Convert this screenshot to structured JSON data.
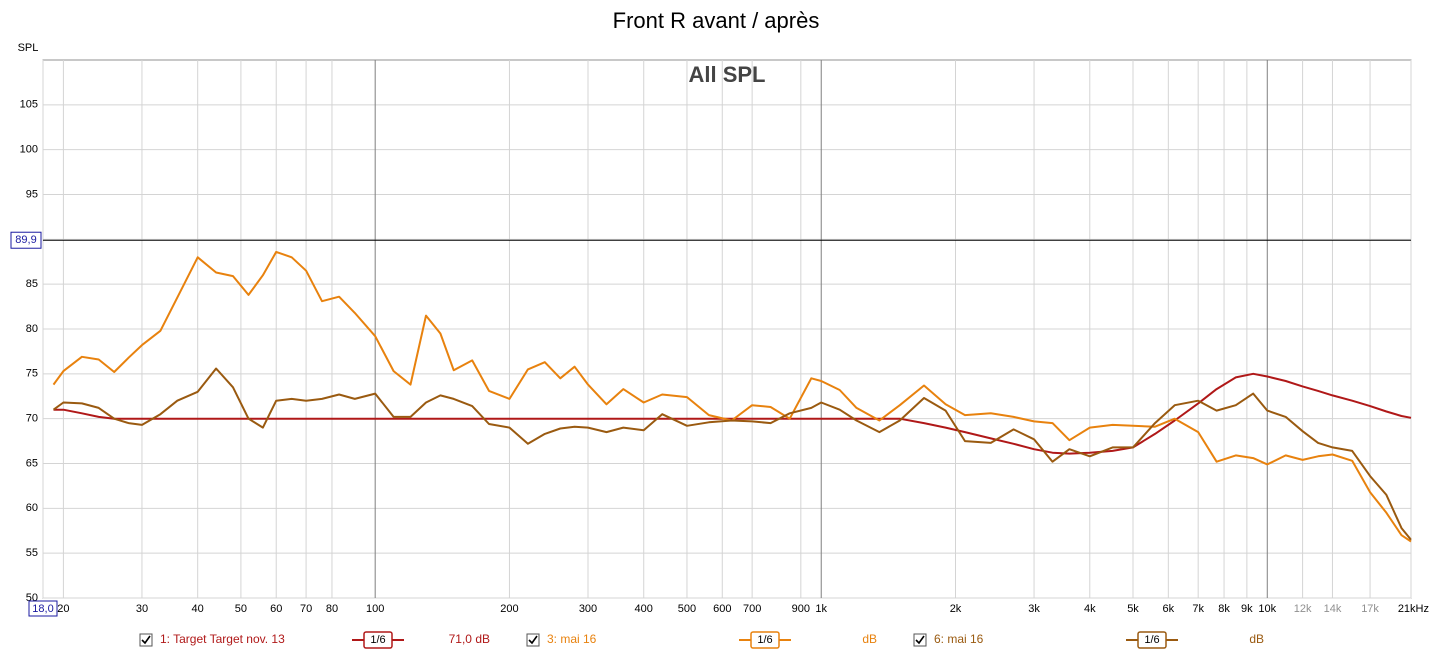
{
  "chart_data": {
    "type": "line",
    "title": "Front R avant / après",
    "annotation": "All SPL",
    "y_label": "SPL",
    "log_x": true,
    "grid": true,
    "xlim": [
      18,
      21000
    ],
    "ylim": [
      50,
      110
    ],
    "yticks": [
      50,
      55,
      60,
      65,
      70,
      75,
      80,
      85,
      90,
      95,
      100,
      105
    ],
    "xticks": [
      {
        "value": 18,
        "label": "18,0"
      },
      20,
      30,
      40,
      50,
      60,
      70,
      80,
      100,
      200,
      300,
      400,
      500,
      600,
      700,
      900,
      {
        "value": 1000,
        "label": "1k"
      },
      {
        "value": 2000,
        "label": "2k"
      },
      {
        "value": 3000,
        "label": "3k"
      },
      {
        "value": 4000,
        "label": "4k"
      },
      {
        "value": 5000,
        "label": "5k"
      },
      {
        "value": 6000,
        "label": "6k"
      },
      {
        "value": 7000,
        "label": "7k"
      },
      {
        "value": 8000,
        "label": "8k"
      },
      {
        "value": 9000,
        "label": "9k"
      },
      {
        "value": 10000,
        "label": "10k"
      },
      {
        "value": 12000,
        "label": "12k"
      },
      {
        "value": 14000,
        "label": "14k"
      },
      {
        "value": 17000,
        "label": "17k"
      },
      {
        "value": 21000,
        "label": "21kHz"
      }
    ],
    "cursor": {
      "value": 89.9,
      "label": "89,9"
    },
    "x": [
      19,
      20,
      22,
      24,
      26,
      28,
      30,
      33,
      36,
      40,
      44,
      48,
      52,
      56,
      60,
      65,
      70,
      76,
      83,
      90,
      100,
      110,
      120,
      130,
      140,
      150,
      165,
      180,
      200,
      220,
      240,
      260,
      280,
      300,
      330,
      360,
      400,
      440,
      500,
      560,
      630,
      700,
      770,
      850,
      950,
      1000,
      1100,
      1200,
      1350,
      1500,
      1700,
      1900,
      2100,
      2400,
      2700,
      3000,
      3300,
      3600,
      4000,
      4500,
      5000,
      5600,
      6200,
      7000,
      7700,
      8500,
      9300,
      10000,
      11000,
      12000,
      13000,
      14000,
      15500,
      17000,
      18500,
      20000,
      21000
    ],
    "series": [
      {
        "name": "1: Target Target nov. 13",
        "color": "#b01818",
        "smoothing": "1/6",
        "level": "71,0 dB",
        "values": [
          71,
          71,
          70.6,
          70.2,
          70,
          70,
          70,
          70,
          70,
          70,
          70,
          70,
          70,
          70,
          70,
          70,
          70,
          70,
          70,
          70,
          70,
          70,
          70,
          70,
          70,
          70,
          70,
          70,
          70,
          70,
          70,
          70,
          70,
          70,
          70,
          70,
          70,
          70,
          70,
          70,
          70,
          70,
          70,
          70,
          70,
          70,
          70,
          70,
          70,
          70,
          69.5,
          69,
          68.5,
          67.8,
          67.2,
          66.6,
          66.2,
          66.1,
          66.2,
          66.4,
          66.8,
          68.3,
          69.8,
          71.7,
          73.3,
          74.6,
          75,
          74.7,
          74.2,
          73.6,
          73.1,
          72.6,
          72,
          71.4,
          70.8,
          70.3,
          70.1
        ]
      },
      {
        "name": "3: mai 16",
        "color": "#e8820e",
        "smoothing": "1/6",
        "level": "dB",
        "values": [
          73.8,
          75.3,
          76.9,
          76.6,
          75.2,
          76.8,
          78.2,
          79.8,
          83.5,
          88,
          86.3,
          85.9,
          83.8,
          86,
          88.6,
          88,
          86.5,
          83.1,
          83.6,
          81.8,
          79.2,
          75.3,
          73.8,
          81.5,
          79.5,
          75.4,
          76.5,
          73.1,
          72.2,
          75.5,
          76.3,
          74.5,
          75.8,
          73.8,
          71.6,
          73.3,
          71.8,
          72.7,
          72.4,
          70.4,
          69.8,
          71.5,
          71.3,
          70,
          74.5,
          74.2,
          73.2,
          71.2,
          69.8,
          71.5,
          73.7,
          71.6,
          70.4,
          70.6,
          70.2,
          69.7,
          69.5,
          67.6,
          69,
          69.3,
          69.2,
          69.1,
          70,
          68.5,
          65.2,
          65.9,
          65.6,
          64.9,
          65.9,
          65.4,
          65.8,
          66,
          65.3,
          61.8,
          59.5,
          57,
          56.3
        ]
      },
      {
        "name": "6: mai 16",
        "color": "#9a5a10",
        "smoothing": "1/6",
        "level": "dB",
        "values": [
          71,
          71.8,
          71.7,
          71.2,
          70,
          69.5,
          69.3,
          70.5,
          72,
          73,
          75.6,
          73.5,
          70,
          69,
          72,
          72.2,
          72,
          72.2,
          72.7,
          72.2,
          72.8,
          70.2,
          70.2,
          71.8,
          72.6,
          72.2,
          71.4,
          69.4,
          69,
          67.2,
          68.3,
          68.9,
          69.1,
          69,
          68.5,
          69,
          68.7,
          70.5,
          69.2,
          69.6,
          69.8,
          69.7,
          69.5,
          70.6,
          71.2,
          71.8,
          71,
          69.8,
          68.5,
          69.8,
          72.3,
          70.9,
          67.5,
          67.3,
          68.8,
          67.7,
          65.2,
          66.6,
          65.8,
          66.8,
          66.8,
          69.5,
          71.5,
          72,
          70.9,
          71.5,
          72.8,
          70.9,
          70.2,
          68.6,
          67.3,
          66.8,
          66.4,
          63.6,
          61.5,
          57.8,
          56.5
        ]
      }
    ]
  }
}
